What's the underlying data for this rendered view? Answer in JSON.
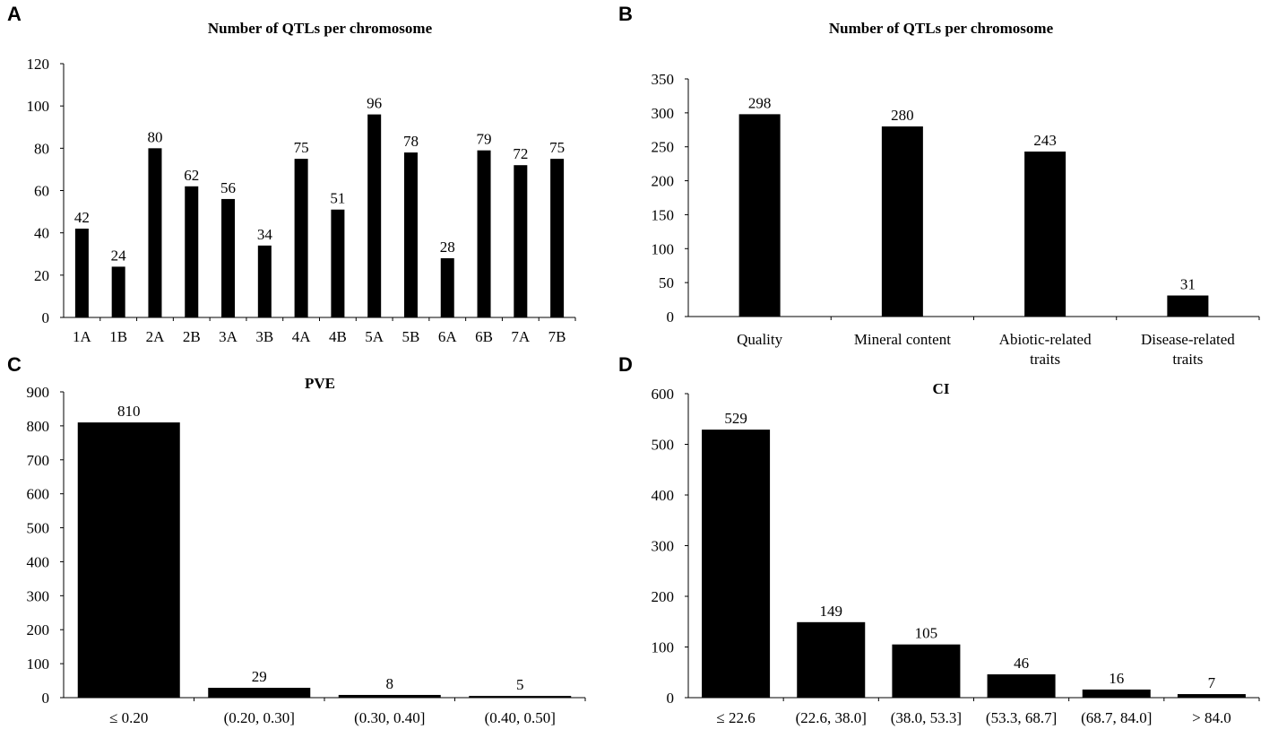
{
  "chart_data": [
    {
      "panel": "A",
      "type": "bar",
      "title": "Number  of QTLs per chromosome",
      "categories": [
        "1A",
        "1B",
        "2A",
        "2B",
        "3A",
        "3B",
        "4A",
        "4B",
        "5A",
        "5B",
        "6A",
        "6B",
        "7A",
        "7B"
      ],
      "values": [
        42,
        24,
        80,
        62,
        56,
        34,
        75,
        51,
        96,
        78,
        28,
        79,
        72,
        75
      ],
      "ylim": [
        0,
        120
      ],
      "yticks": [
        0,
        20,
        40,
        60,
        80,
        100,
        120
      ],
      "xlabel": "",
      "ylabel": ""
    },
    {
      "panel": "B",
      "type": "bar",
      "title": "Number  of QTLs per chromosome",
      "categories": [
        "Quality",
        "Mineral content",
        "Abiotic-related traits",
        "Disease-related traits"
      ],
      "values": [
        298,
        280,
        243,
        31
      ],
      "ylim": [
        0,
        350
      ],
      "yticks": [
        0,
        50,
        100,
        150,
        200,
        250,
        300,
        350
      ],
      "xlabel": "",
      "ylabel": ""
    },
    {
      "panel": "C",
      "type": "bar",
      "title": "PVE",
      "categories": [
        "≤ 0.20",
        "(0.20, 0.30]",
        "(0.30, 0.40]",
        "(0.40, 0.50]"
      ],
      "values": [
        810,
        29,
        8,
        5
      ],
      "ylim": [
        0,
        900
      ],
      "yticks": [
        0,
        100,
        200,
        300,
        400,
        500,
        600,
        700,
        800,
        900
      ],
      "xlabel": "",
      "ylabel": ""
    },
    {
      "panel": "D",
      "type": "bar",
      "title": "CI",
      "categories": [
        "≤ 22.6",
        "(22.6, 38.0]",
        "(38.0, 53.3]",
        "(53.3, 68.7]",
        "(68.7, 84.0]",
        "> 84.0"
      ],
      "values": [
        529,
        149,
        105,
        46,
        16,
        7
      ],
      "ylim": [
        0,
        600
      ],
      "yticks": [
        0,
        100,
        200,
        300,
        400,
        500,
        600
      ],
      "xlabel": "",
      "ylabel": ""
    }
  ],
  "colors": {
    "bar": "#000000",
    "axis": "#000000",
    "background": "#ffffff"
  }
}
